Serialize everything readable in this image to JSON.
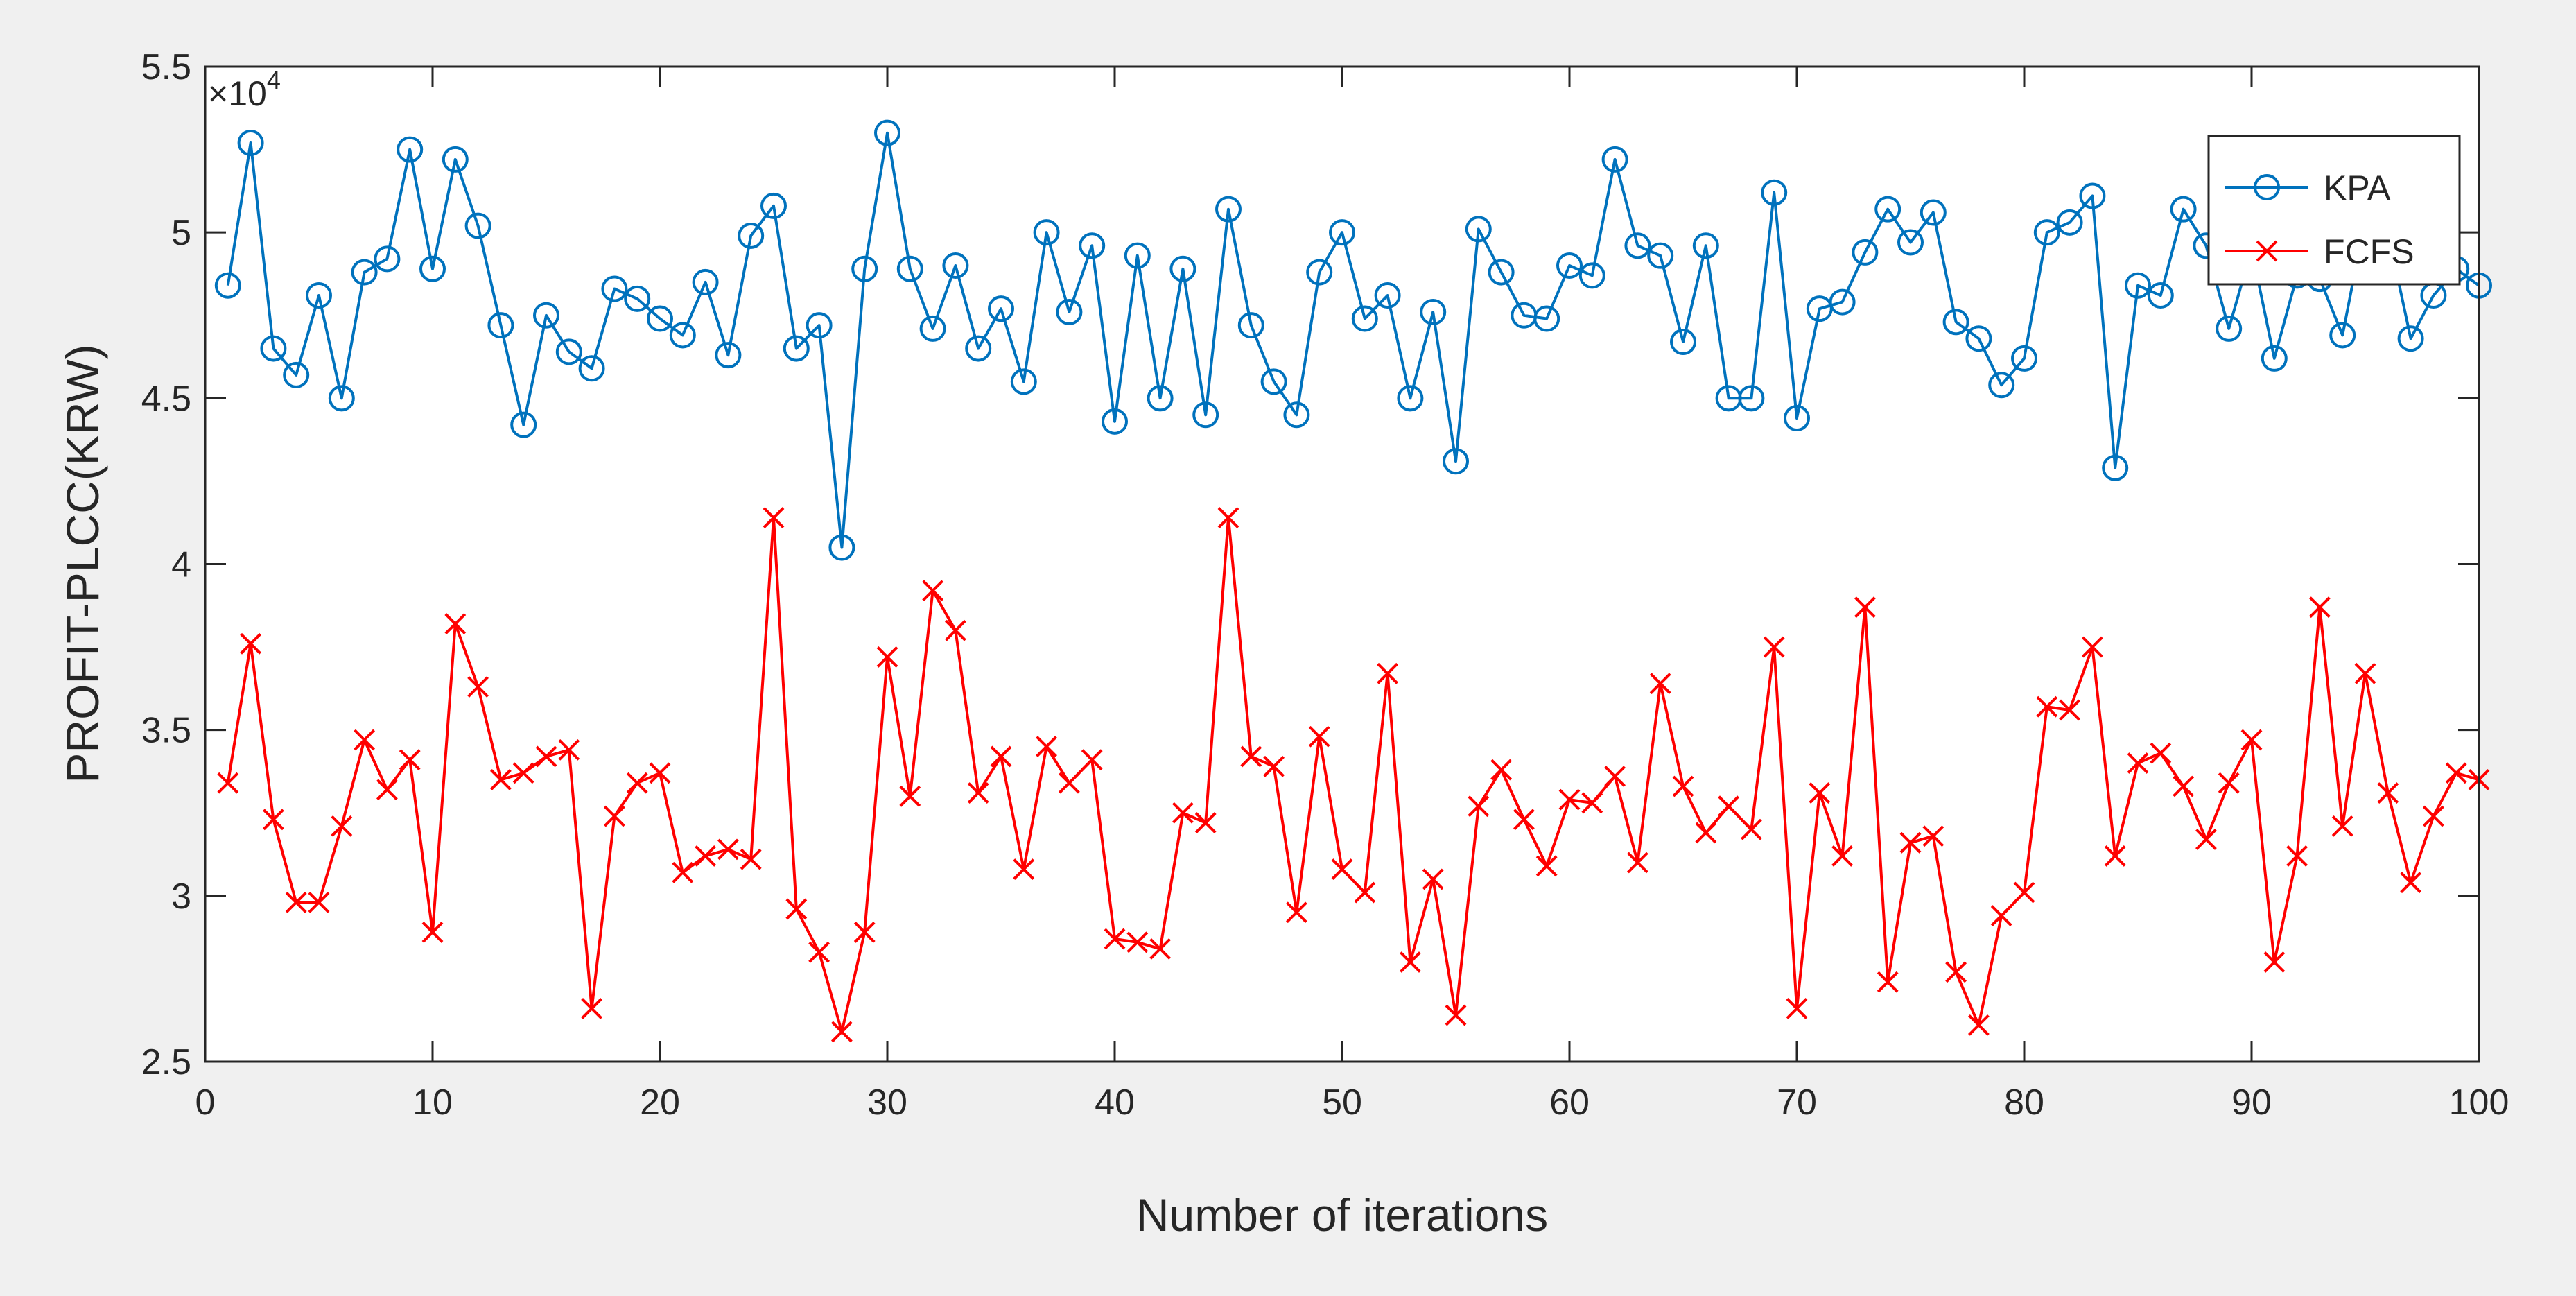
{
  "chart_data": {
    "type": "line",
    "title": "",
    "xlabel": "Number of iterations",
    "ylabel": "PROFIT-PLCC(KRW)",
    "y_exponent_label": "×10",
    "y_exponent_power": "4",
    "xlim": [
      0,
      100
    ],
    "ylim": [
      2.5,
      5.5
    ],
    "x_ticks": [
      0,
      10,
      20,
      30,
      40,
      50,
      60,
      70,
      80,
      90,
      100
    ],
    "x_tick_labels": [
      "0",
      "10",
      "20",
      "30",
      "40",
      "50",
      "60",
      "70",
      "80",
      "90",
      "100"
    ],
    "y_ticks": [
      2.5,
      3,
      3.5,
      4,
      4.5,
      5,
      5.5
    ],
    "y_tick_labels": [
      "2.5",
      "3",
      "3.5",
      "4",
      "4.5",
      "5",
      "5.5"
    ],
    "grid": false,
    "legend_position": "top-right",
    "x": [
      1,
      2,
      3,
      4,
      5,
      6,
      7,
      8,
      9,
      10,
      11,
      12,
      13,
      14,
      15,
      16,
      17,
      18,
      19,
      20,
      21,
      22,
      23,
      24,
      25,
      26,
      27,
      28,
      29,
      30,
      31,
      32,
      33,
      34,
      35,
      36,
      37,
      38,
      39,
      40,
      41,
      42,
      43,
      44,
      45,
      46,
      47,
      48,
      49,
      50,
      51,
      52,
      53,
      54,
      55,
      56,
      57,
      58,
      59,
      60,
      61,
      62,
      63,
      64,
      65,
      66,
      67,
      68,
      69,
      70,
      71,
      72,
      73,
      74,
      75,
      76,
      77,
      78,
      79,
      80,
      81,
      82,
      83,
      84,
      85,
      86,
      87,
      88,
      89,
      90,
      91,
      92,
      93,
      94,
      95,
      96,
      97,
      98,
      99,
      100
    ],
    "series": [
      {
        "name": "KPA",
        "color": "#0072bd",
        "marker": "circle",
        "values": [
          4.84,
          5.27,
          4.65,
          4.57,
          4.81,
          4.5,
          4.88,
          4.92,
          5.25,
          4.89,
          5.22,
          5.02,
          4.72,
          4.42,
          4.75,
          4.64,
          4.59,
          4.83,
          4.8,
          4.74,
          4.69,
          4.85,
          4.63,
          4.99,
          5.08,
          4.65,
          4.72,
          4.05,
          4.89,
          5.3,
          4.89,
          4.71,
          4.9,
          4.65,
          4.77,
          4.55,
          5.0,
          4.76,
          4.96,
          4.43,
          4.93,
          4.5,
          4.89,
          4.45,
          5.07,
          4.72,
          4.55,
          4.45,
          4.88,
          5.0,
          4.74,
          4.81,
          4.5,
          4.76,
          4.31,
          5.01,
          4.88,
          4.75,
          4.74,
          4.9,
          4.87,
          5.22,
          4.96,
          4.93,
          4.67,
          4.96,
          4.5,
          4.5,
          5.12,
          4.44,
          4.77,
          4.79,
          4.94,
          5.07,
          4.97,
          5.06,
          4.73,
          4.68,
          4.54,
          4.62,
          5.0,
          5.03,
          5.11,
          4.29,
          4.84,
          4.81,
          5.07,
          4.96,
          4.71,
          4.95,
          4.62,
          4.87,
          4.86,
          4.69,
          5.04,
          5.0,
          4.68,
          4.81,
          4.89,
          4.84
        ]
      },
      {
        "name": "FCFS",
        "color": "#ff0000",
        "marker": "x",
        "values": [
          3.34,
          3.76,
          3.23,
          2.98,
          2.98,
          3.21,
          3.47,
          3.32,
          3.41,
          2.89,
          3.82,
          3.63,
          3.35,
          3.37,
          3.42,
          3.44,
          2.66,
          3.24,
          3.34,
          3.37,
          3.07,
          3.12,
          3.14,
          3.11,
          4.14,
          2.96,
          2.83,
          2.59,
          2.89,
          3.72,
          3.3,
          3.92,
          3.8,
          3.31,
          3.42,
          3.08,
          3.45,
          3.34,
          3.41,
          2.87,
          2.86,
          2.84,
          3.25,
          3.22,
          4.14,
          3.42,
          3.39,
          2.95,
          3.48,
          3.08,
          3.01,
          3.67,
          2.8,
          3.05,
          2.64,
          3.27,
          3.38,
          3.23,
          3.09,
          3.29,
          3.28,
          3.36,
          3.1,
          3.64,
          3.33,
          3.19,
          3.27,
          3.2,
          3.75,
          2.66,
          3.31,
          3.12,
          3.87,
          2.74,
          3.16,
          3.18,
          2.77,
          2.61,
          2.94,
          3.01,
          3.57,
          3.56,
          3.75,
          3.12,
          3.4,
          3.43,
          3.33,
          3.17,
          3.34,
          3.47,
          2.8,
          3.12,
          3.87,
          3.21,
          3.67,
          3.31,
          3.04,
          3.24,
          3.37,
          3.35
        ]
      }
    ]
  }
}
